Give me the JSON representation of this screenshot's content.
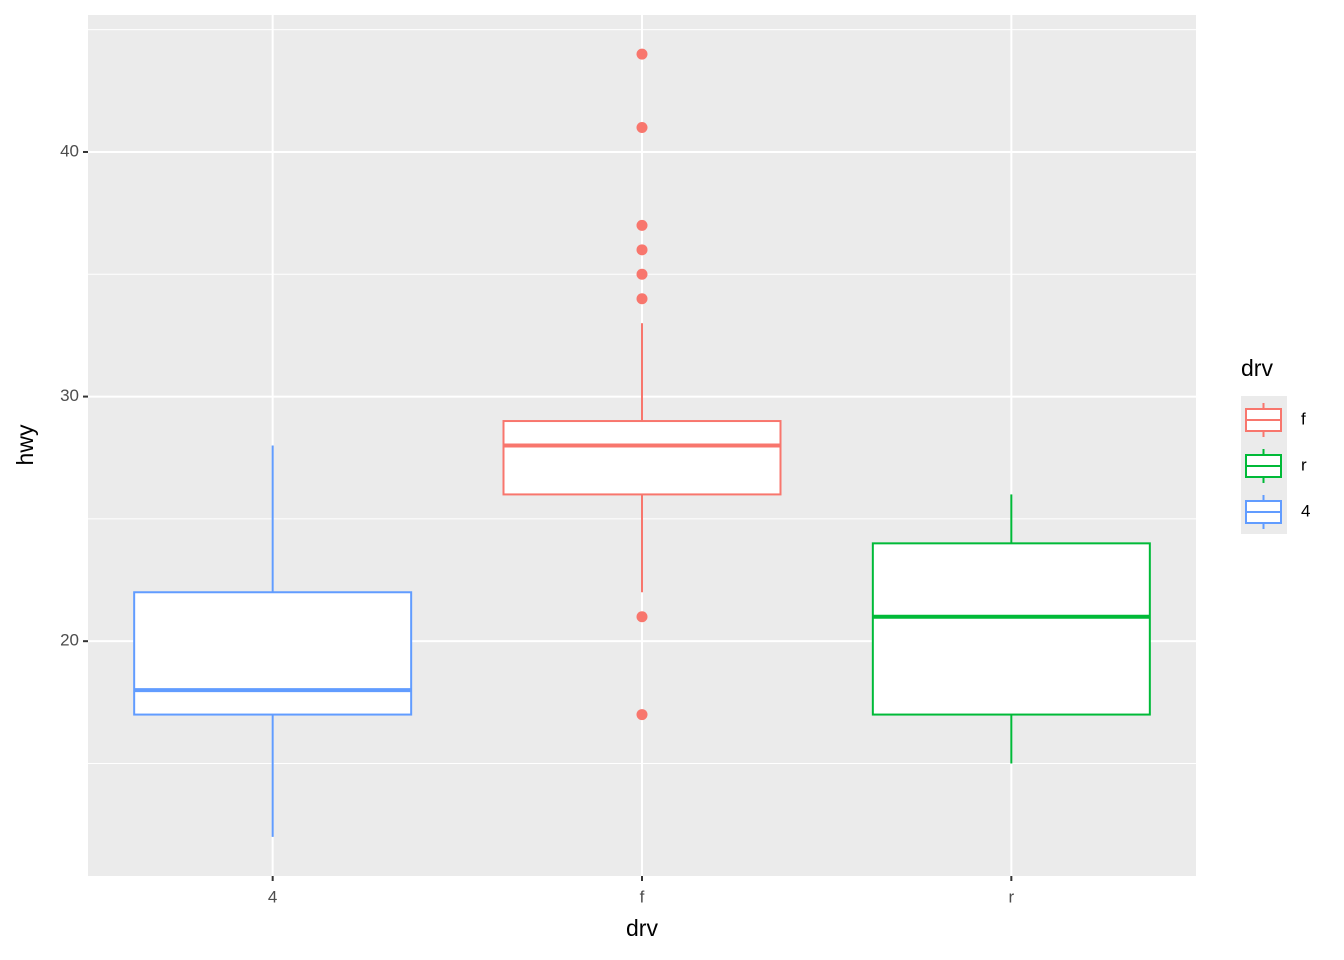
{
  "chart_data": {
    "type": "boxplot",
    "x_label": "drv",
    "y_label": "hwy",
    "categories": [
      "4",
      "f",
      "r"
    ],
    "ylim": [
      10.4,
      45.6
    ],
    "yticks": [
      20,
      30,
      40
    ],
    "minor_yticks": [
      15,
      25,
      35,
      45
    ],
    "grid": true,
    "legend": {
      "title": "drv",
      "position": "right"
    },
    "series": [
      {
        "name": "f",
        "color": "#F8766D",
        "whisker_low": 22,
        "q1": 26,
        "median": 28,
        "q3": 29,
        "whisker_high": 33,
        "outliers": [
          44,
          41,
          37,
          36,
          35,
          34,
          21,
          17
        ]
      },
      {
        "name": "r",
        "color": "#00BA38",
        "whisker_low": 15,
        "q1": 17,
        "median": 21,
        "q3": 24,
        "whisker_high": 26,
        "outliers": []
      },
      {
        "name": "4",
        "color": "#619CFF",
        "whisker_low": 12,
        "q1": 17,
        "median": 18,
        "q3": 22,
        "whisker_high": 28,
        "outliers": []
      }
    ]
  }
}
